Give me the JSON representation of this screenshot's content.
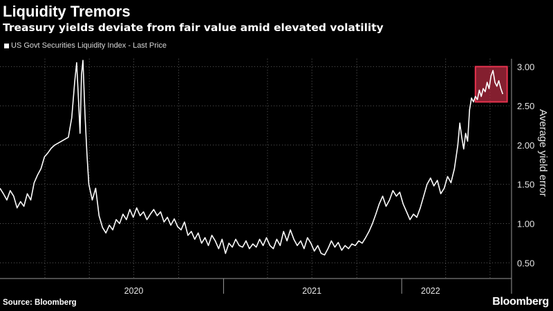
{
  "header": {
    "title": "Liquidity Tremors",
    "subtitle": "Treasury yields deviate from fair value amid elevated volatility"
  },
  "footer": {
    "source": "Source: Bloomberg",
    "brand": "Bloomberg"
  },
  "colors": {
    "background": "#000000",
    "line": "#ffffff",
    "highlight_fill": "#b0293f",
    "highlight_stroke": "#e8334f"
  },
  "chart_data": {
    "type": "line",
    "title": "Liquidity Tremors",
    "subtitle": "Treasury yields deviate from fair value amid elevated volatility",
    "ylabel": "Average yield error",
    "ylim": [
      0.3,
      3.1
    ],
    "yticks": [
      "0.50",
      "1.00",
      "1.50",
      "2.00",
      "2.50",
      "3.00"
    ],
    "ytick_values": [
      0.5,
      1.0,
      1.5,
      2.0,
      2.5,
      3.0
    ],
    "xlim": [
      "2019-10-01",
      "2022-06-15"
    ],
    "xticks": [
      {
        "label": "2020",
        "date": "2020-07-01"
      },
      {
        "label": "2021",
        "date": "2021-07-01"
      },
      {
        "label": "2022",
        "date": "2022-03-01"
      }
    ],
    "year_dividers": [
      "2021-01-01",
      "2022-01-01"
    ],
    "grid": "dashed",
    "legend_position": "top-left",
    "series": [
      {
        "name": "US Govt Securities Liquidity Index - Last Price",
        "points": [
          [
            "2019-10-01",
            1.45
          ],
          [
            "2019-10-08",
            1.38
          ],
          [
            "2019-10-15",
            1.3
          ],
          [
            "2019-10-22",
            1.42
          ],
          [
            "2019-10-29",
            1.35
          ],
          [
            "2019-11-05",
            1.2
          ],
          [
            "2019-11-12",
            1.28
          ],
          [
            "2019-11-19",
            1.22
          ],
          [
            "2019-11-26",
            1.38
          ],
          [
            "2019-12-03",
            1.3
          ],
          [
            "2019-12-10",
            1.52
          ],
          [
            "2019-12-17",
            1.62
          ],
          [
            "2019-12-24",
            1.7
          ],
          [
            "2019-12-31",
            1.85
          ],
          [
            "2020-01-07",
            1.9
          ],
          [
            "2020-01-14",
            1.96
          ],
          [
            "2020-01-21",
            2.0
          ],
          [
            "2020-02-04",
            2.05
          ],
          [
            "2020-02-18",
            2.1
          ],
          [
            "2020-02-25",
            2.35
          ],
          [
            "2020-03-02",
            2.8
          ],
          [
            "2020-03-06",
            3.05
          ],
          [
            "2020-03-10",
            2.55
          ],
          [
            "2020-03-13",
            2.15
          ],
          [
            "2020-03-16",
            2.9
          ],
          [
            "2020-03-19",
            3.08
          ],
          [
            "2020-03-23",
            2.4
          ],
          [
            "2020-03-27",
            1.9
          ],
          [
            "2020-03-31",
            1.5
          ],
          [
            "2020-04-07",
            1.3
          ],
          [
            "2020-04-14",
            1.45
          ],
          [
            "2020-04-21",
            1.1
          ],
          [
            "2020-04-28",
            0.95
          ],
          [
            "2020-05-05",
            0.88
          ],
          [
            "2020-05-12",
            0.98
          ],
          [
            "2020-05-19",
            0.92
          ],
          [
            "2020-05-26",
            1.05
          ],
          [
            "2020-06-02",
            1.0
          ],
          [
            "2020-06-09",
            1.12
          ],
          [
            "2020-06-16",
            1.05
          ],
          [
            "2020-06-23",
            1.18
          ],
          [
            "2020-06-30",
            1.08
          ],
          [
            "2020-07-07",
            1.2
          ],
          [
            "2020-07-14",
            1.1
          ],
          [
            "2020-07-21",
            1.15
          ],
          [
            "2020-07-28",
            1.05
          ],
          [
            "2020-08-04",
            1.12
          ],
          [
            "2020-08-11",
            1.18
          ],
          [
            "2020-08-18",
            1.1
          ],
          [
            "2020-08-25",
            1.15
          ],
          [
            "2020-09-01",
            1.02
          ],
          [
            "2020-09-08",
            1.08
          ],
          [
            "2020-09-15",
            0.98
          ],
          [
            "2020-09-22",
            1.06
          ],
          [
            "2020-09-29",
            0.96
          ],
          [
            "2020-10-06",
            0.92
          ],
          [
            "2020-10-13",
            1.02
          ],
          [
            "2020-10-20",
            0.85
          ],
          [
            "2020-10-27",
            0.9
          ],
          [
            "2020-11-03",
            0.8
          ],
          [
            "2020-11-10",
            0.88
          ],
          [
            "2020-11-17",
            0.75
          ],
          [
            "2020-11-24",
            0.82
          ],
          [
            "2020-12-01",
            0.72
          ],
          [
            "2020-12-08",
            0.85
          ],
          [
            "2020-12-15",
            0.78
          ],
          [
            "2020-12-22",
            0.68
          ],
          [
            "2020-12-29",
            0.8
          ],
          [
            "2021-01-05",
            0.62
          ],
          [
            "2021-01-12",
            0.75
          ],
          [
            "2021-01-19",
            0.7
          ],
          [
            "2021-01-26",
            0.8
          ],
          [
            "2021-02-02",
            0.72
          ],
          [
            "2021-02-09",
            0.7
          ],
          [
            "2021-02-16",
            0.78
          ],
          [
            "2021-02-23",
            0.68
          ],
          [
            "2021-03-02",
            0.74
          ],
          [
            "2021-03-09",
            0.7
          ],
          [
            "2021-03-16",
            0.8
          ],
          [
            "2021-03-23",
            0.72
          ],
          [
            "2021-03-30",
            0.82
          ],
          [
            "2021-04-06",
            0.72
          ],
          [
            "2021-04-13",
            0.68
          ],
          [
            "2021-04-20",
            0.8
          ],
          [
            "2021-04-27",
            0.72
          ],
          [
            "2021-05-04",
            0.9
          ],
          [
            "2021-05-11",
            0.78
          ],
          [
            "2021-05-18",
            0.92
          ],
          [
            "2021-05-25",
            0.8
          ],
          [
            "2021-06-01",
            0.72
          ],
          [
            "2021-06-08",
            0.78
          ],
          [
            "2021-06-15",
            0.68
          ],
          [
            "2021-06-22",
            0.82
          ],
          [
            "2021-06-29",
            0.75
          ],
          [
            "2021-07-06",
            0.65
          ],
          [
            "2021-07-13",
            0.72
          ],
          [
            "2021-07-20",
            0.62
          ],
          [
            "2021-07-27",
            0.6
          ],
          [
            "2021-08-03",
            0.68
          ],
          [
            "2021-08-10",
            0.78
          ],
          [
            "2021-08-17",
            0.7
          ],
          [
            "2021-08-24",
            0.76
          ],
          [
            "2021-08-31",
            0.66
          ],
          [
            "2021-09-07",
            0.72
          ],
          [
            "2021-09-14",
            0.68
          ],
          [
            "2021-09-21",
            0.74
          ],
          [
            "2021-09-28",
            0.72
          ],
          [
            "2021-10-05",
            0.78
          ],
          [
            "2021-10-12",
            0.75
          ],
          [
            "2021-10-19",
            0.82
          ],
          [
            "2021-10-26",
            0.9
          ],
          [
            "2021-11-02",
            1.0
          ],
          [
            "2021-11-09",
            1.12
          ],
          [
            "2021-11-16",
            1.25
          ],
          [
            "2021-11-23",
            1.35
          ],
          [
            "2021-11-30",
            1.22
          ],
          [
            "2021-12-07",
            1.3
          ],
          [
            "2021-12-14",
            1.42
          ],
          [
            "2021-12-21",
            1.35
          ],
          [
            "2021-12-28",
            1.4
          ],
          [
            "2022-01-04",
            1.25
          ],
          [
            "2022-01-11",
            1.15
          ],
          [
            "2022-01-18",
            1.05
          ],
          [
            "2022-01-25",
            1.12
          ],
          [
            "2022-02-01",
            1.08
          ],
          [
            "2022-02-08",
            1.2
          ],
          [
            "2022-02-15",
            1.35
          ],
          [
            "2022-02-22",
            1.5
          ],
          [
            "2022-03-01",
            1.58
          ],
          [
            "2022-03-08",
            1.48
          ],
          [
            "2022-03-15",
            1.55
          ],
          [
            "2022-03-22",
            1.38
          ],
          [
            "2022-03-29",
            1.45
          ],
          [
            "2022-04-05",
            1.6
          ],
          [
            "2022-04-12",
            1.52
          ],
          [
            "2022-04-19",
            1.7
          ],
          [
            "2022-04-26",
            2.0
          ],
          [
            "2022-04-30",
            2.28
          ],
          [
            "2022-05-04",
            2.1
          ],
          [
            "2022-05-08",
            1.95
          ],
          [
            "2022-05-12",
            2.15
          ],
          [
            "2022-05-16",
            2.05
          ],
          [
            "2022-05-20",
            2.45
          ],
          [
            "2022-05-24",
            2.6
          ],
          [
            "2022-05-28",
            2.55
          ],
          [
            "2022-06-01",
            2.62
          ],
          [
            "2022-06-05",
            2.58
          ],
          [
            "2022-06-09",
            2.7
          ],
          [
            "2022-06-13",
            2.62
          ],
          [
            "2022-06-17",
            2.72
          ],
          [
            "2022-06-21",
            2.68
          ],
          [
            "2022-06-25",
            2.8
          ],
          [
            "2022-06-29",
            2.72
          ],
          [
            "2022-07-03",
            2.88
          ],
          [
            "2022-07-07",
            2.95
          ],
          [
            "2022-07-11",
            2.8
          ],
          [
            "2022-07-15",
            2.75
          ],
          [
            "2022-07-19",
            2.82
          ],
          [
            "2022-07-23",
            2.72
          ],
          [
            "2022-07-27",
            2.65
          ]
        ]
      }
    ],
    "highlight": {
      "x_from": "2022-06-01",
      "x_to": "2022-08-05",
      "y_from": 2.55,
      "y_to": 3.0
    }
  }
}
